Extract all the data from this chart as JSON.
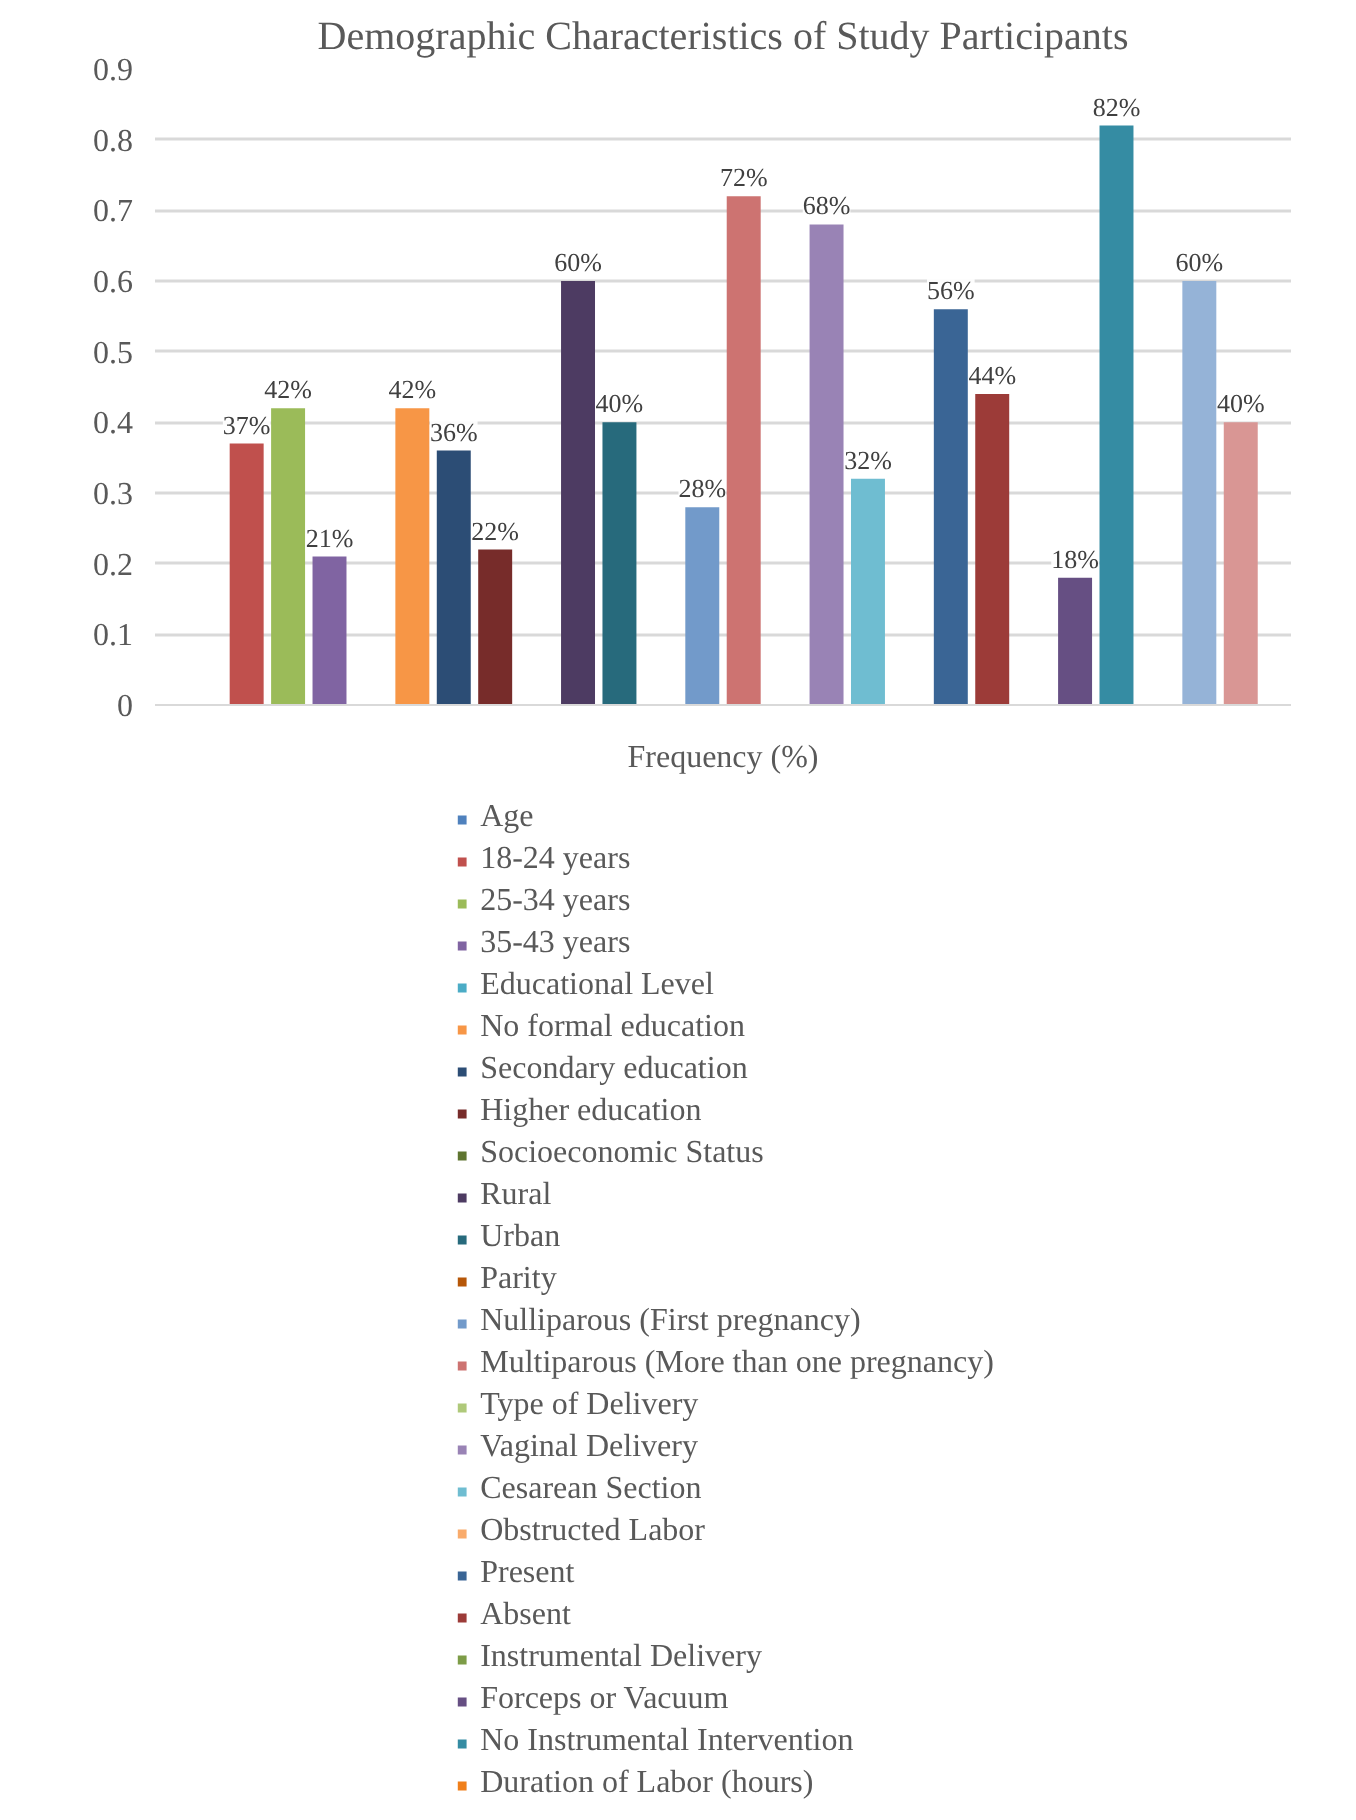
{
  "chart_data": {
    "type": "bar",
    "title": "Demographic Characteristics of Study Participants",
    "xlabel": "Frequency (%)",
    "categories": [
      null
    ],
    "ylim": [
      0,
      0.9
    ],
    "yticks": [
      0,
      0.1,
      0.2,
      0.3,
      0.4,
      0.5,
      0.6,
      0.7,
      0.8,
      0.9
    ],
    "grid": "y",
    "legend": "bottom",
    "series": [
      {
        "name": "Age",
        "color": "#4f81bd",
        "values": [
          null
        ]
      },
      {
        "name": "18-24 years",
        "color": "#c0504d",
        "values": [
          0.37
        ],
        "value_labels": [
          "37%"
        ]
      },
      {
        "name": "25-34 years",
        "color": "#9bbb59",
        "values": [
          0.42
        ],
        "value_labels": [
          "42%"
        ]
      },
      {
        "name": "35-43 years",
        "color": "#8064a2",
        "values": [
          0.21
        ],
        "value_labels": [
          "21%"
        ]
      },
      {
        "name": "Educational Level",
        "color": "#4bacc6",
        "values": [
          null
        ]
      },
      {
        "name": "No formal education",
        "color": "#f79646",
        "values": [
          0.42
        ],
        "value_labels": [
          "42%"
        ]
      },
      {
        "name": "Secondary education",
        "color": "#2c4d75",
        "values": [
          0.36
        ],
        "value_labels": [
          "36%"
        ]
      },
      {
        "name": "Higher education",
        "color": "#772c2a",
        "values": [
          0.22
        ],
        "value_labels": [
          "22%"
        ]
      },
      {
        "name": "Socioeconomic Status",
        "color": "#5f7530",
        "values": [
          null
        ]
      },
      {
        "name": "Rural",
        "color": "#4d3b62",
        "values": [
          0.6
        ],
        "value_labels": [
          "60%"
        ]
      },
      {
        "name": "Urban",
        "color": "#276a7c",
        "values": [
          0.4
        ],
        "value_labels": [
          "40%"
        ]
      },
      {
        "name": "Parity",
        "color": "#b65708",
        "values": [
          null
        ]
      },
      {
        "name": "Nulliparous (First pregnancy)",
        "color": "#729aca",
        "values": [
          0.28
        ],
        "value_labels": [
          "28%"
        ]
      },
      {
        "name": "Multiparous (More than one pregnancy)",
        "color": "#cd7371",
        "values": [
          0.72
        ],
        "value_labels": [
          "72%"
        ]
      },
      {
        "name": "Type of Delivery",
        "color": "#afc97a",
        "values": [
          null
        ]
      },
      {
        "name": "Vaginal Delivery",
        "color": "#9983b5",
        "values": [
          0.68
        ],
        "value_labels": [
          "68%"
        ]
      },
      {
        "name": "Cesarean Section",
        "color": "#6fbdd1",
        "values": [
          0.32
        ],
        "value_labels": [
          "32%"
        ]
      },
      {
        "name": "Obstructed Labor",
        "color": "#f9ab6b",
        "values": [
          null
        ]
      },
      {
        "name": "Present",
        "color": "#3a6595",
        "values": [
          0.56
        ],
        "value_labels": [
          "56%"
        ]
      },
      {
        "name": "Absent",
        "color": "#9c3b38",
        "values": [
          0.44
        ],
        "value_labels": [
          "44%"
        ]
      },
      {
        "name": "Instrumental Delivery",
        "color": "#7d9c47",
        "values": [
          null
        ]
      },
      {
        "name": "Forceps or Vacuum",
        "color": "#664f83",
        "values": [
          0.18
        ],
        "value_labels": [
          "18%"
        ]
      },
      {
        "name": "No Instrumental Intervention",
        "color": "#358ca3",
        "values": [
          0.82
        ],
        "value_labels": [
          "82%"
        ]
      },
      {
        "name": "Duration of Labor (hours)",
        "color": "#f07f1a",
        "values": [
          null
        ]
      },
      {
        "color": "#95b3d7",
        "values": [
          0.6
        ],
        "value_labels": [
          "60%"
        ]
      },
      {
        "color": "#d99694",
        "values": [
          0.4
        ],
        "value_labels": [
          "40%"
        ]
      }
    ]
  }
}
